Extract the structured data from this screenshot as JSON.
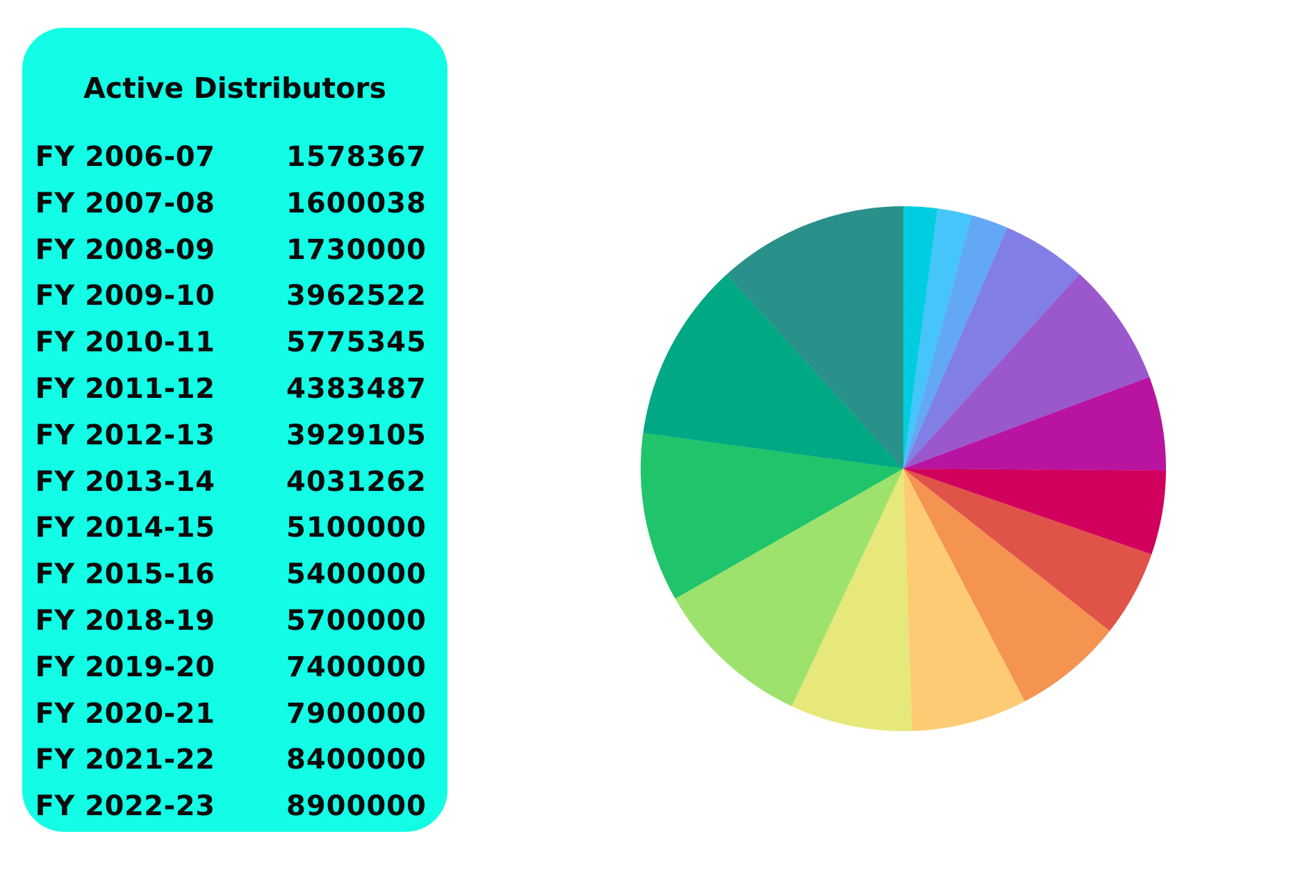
{
  "panel": {
    "bg_color": "#12fce6"
  },
  "chart_data": {
    "type": "pie",
    "title": "Active Distributors",
    "categories": [
      "FY 2006-07",
      "FY 2007-08",
      "FY 2008-09",
      "FY 2009-10",
      "FY 2010-11",
      "FY 2011-12",
      "FY 2012-13",
      "FY 2013-14",
      "FY 2014-15",
      "FY 2015-16",
      "FY 2018-19",
      "FY 2019-20",
      "FY 2020-21",
      "FY 2021-22",
      "FY 2022-23"
    ],
    "labels": [
      "1578367",
      "1600038",
      "1730000",
      "3962522",
      "5775345",
      "4383487",
      "3929105",
      "4031262",
      "5100000",
      "5400000",
      "5700000",
      "7400000",
      "7900000",
      "8400000",
      "8900000"
    ],
    "values": [
      1578367,
      1600038,
      1730000,
      3962522,
      5775345,
      4383487,
      3929105,
      4031262,
      5100000,
      5400000,
      5700000,
      7400000,
      7900000,
      8400000,
      8900000
    ],
    "colors": [
      "#00cee0",
      "#45c5fa",
      "#63a8f5",
      "#817fe6",
      "#9a58cc",
      "#b814a0",
      "#d2005d",
      "#e05349",
      "#f59351",
      "#fdcb73",
      "#e6e87a",
      "#9de26d",
      "#20c46a",
      "#00a884",
      "#2a918a"
    ]
  }
}
